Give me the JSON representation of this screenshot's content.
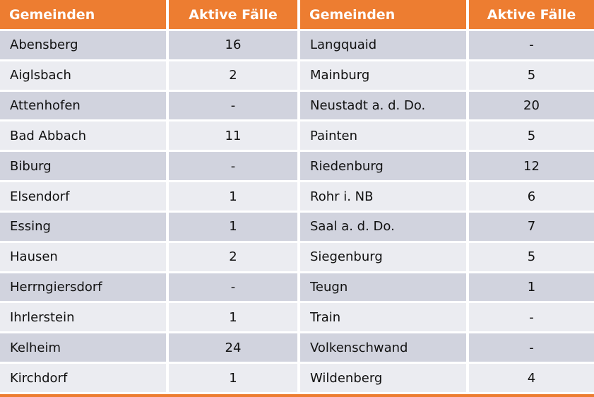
{
  "chart_data": {
    "type": "table",
    "columns": [
      "Gemeinden",
      "Aktive Fälle",
      "Gemeinden",
      "Aktive Fälle"
    ],
    "rows_left": [
      {
        "name": "Abensberg",
        "cases": "16"
      },
      {
        "name": "Aiglsbach",
        "cases": "2"
      },
      {
        "name": "Attenhofen",
        "cases": "-"
      },
      {
        "name": "Bad Abbach",
        "cases": "11"
      },
      {
        "name": "Biburg",
        "cases": "-"
      },
      {
        "name": "Elsendorf",
        "cases": "1"
      },
      {
        "name": "Essing",
        "cases": "1"
      },
      {
        "name": "Hausen",
        "cases": "2"
      },
      {
        "name": "Herrngiersdorf",
        "cases": "-"
      },
      {
        "name": "Ihrlerstein",
        "cases": "1"
      },
      {
        "name": "Kelheim",
        "cases": "24"
      },
      {
        "name": "Kirchdorf",
        "cases": "1"
      }
    ],
    "rows_right": [
      {
        "name": "Langquaid",
        "cases": "-"
      },
      {
        "name": "Mainburg",
        "cases": "5"
      },
      {
        "name": "Neustadt a. d. Do.",
        "cases": "20"
      },
      {
        "name": "Painten",
        "cases": "5"
      },
      {
        "name": "Riedenburg",
        "cases": "12"
      },
      {
        "name": "Rohr i. NB",
        "cases": "6"
      },
      {
        "name": "Saal a. d. Do.",
        "cases": "7"
      },
      {
        "name": "Siegenburg",
        "cases": "5"
      },
      {
        "name": "Teugn",
        "cases": "1"
      },
      {
        "name": "Train",
        "cases": "-"
      },
      {
        "name": "Volkenschwand",
        "cases": "-"
      },
      {
        "name": "Wildenberg",
        "cases": "4"
      }
    ]
  },
  "colors": {
    "header_bg": "#ED7D31",
    "header_text": "#FFFFFF",
    "row_odd_bg": "#D1D3DE",
    "row_even_bg": "#EBECF1",
    "cell_text": "#111111",
    "separator": "#FFFFFF"
  }
}
